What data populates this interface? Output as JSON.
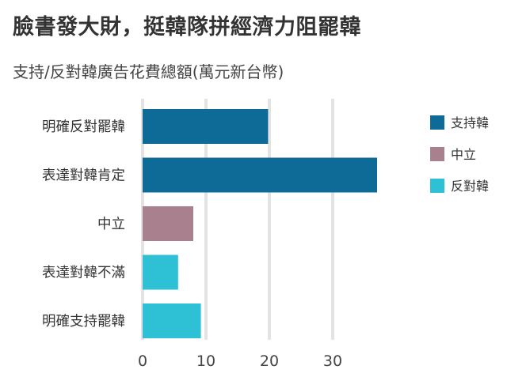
{
  "title": "臉書發大財，挺韓隊拼經濟力阻罷韓",
  "subtitle": "支持/反對韓廣告花費總額(萬元新台幣)",
  "chart_data": {
    "type": "bar",
    "orientation": "horizontal",
    "categories": [
      "明確反對罷韓",
      "表達對韓肯定",
      "中立",
      "表達對韓不滿",
      "明確支持罷韓"
    ],
    "values": [
      19.8,
      37,
      8,
      5.6,
      9.2
    ],
    "groups": [
      "支持韓",
      "支持韓",
      "中立",
      "反對韓",
      "反對韓"
    ],
    "legend": [
      {
        "name": "支持韓",
        "color": "#0e6a96"
      },
      {
        "name": "中立",
        "color": "#a8808e"
      },
      {
        "name": "反對韓",
        "color": "#2ec1d6"
      }
    ],
    "xticks": [
      0,
      10,
      20,
      30
    ],
    "xlim": [
      0,
      40
    ],
    "grid": true,
    "legend_position": "right"
  }
}
